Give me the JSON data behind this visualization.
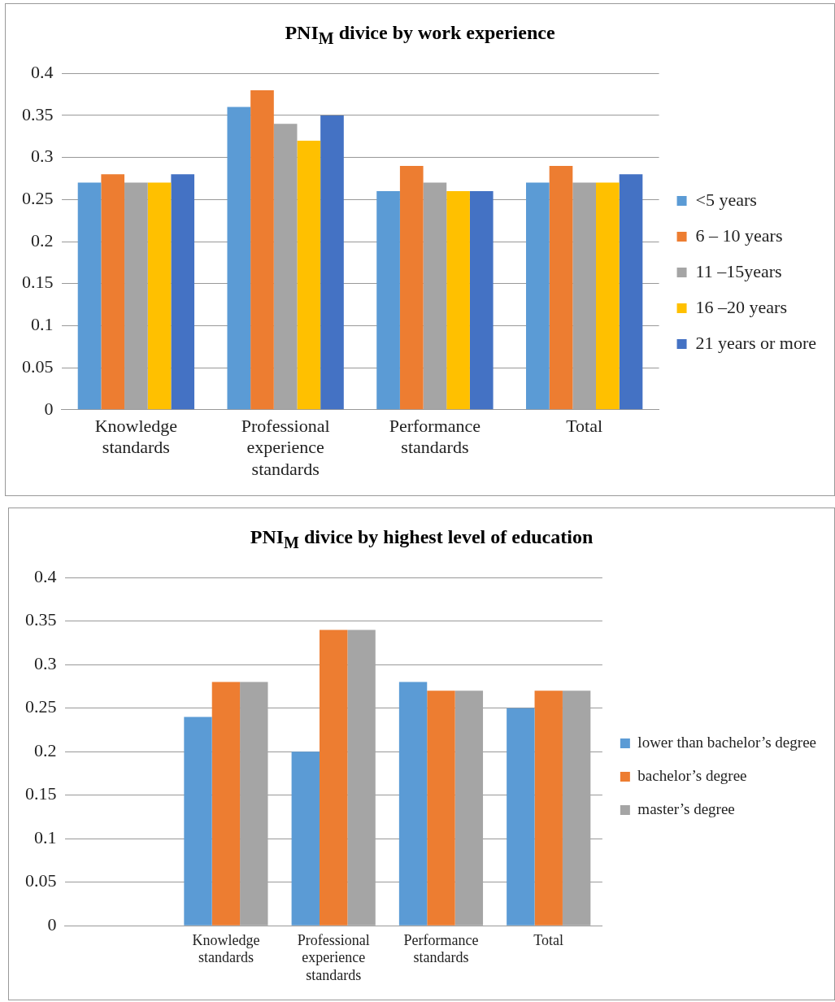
{
  "chart_data": [
    {
      "type": "bar",
      "title": "PNI$_{M}$ divice by work experience",
      "categories": [
        "Knowledge standards",
        "Professional experience standards",
        "Performance standards",
        "Total"
      ],
      "series": [
        {
          "name": "<5 years",
          "color": "#5b9bd5",
          "values": [
            0.27,
            0.36,
            0.26,
            0.27
          ]
        },
        {
          "name": "6 – 10 years",
          "color": "#ed7d31",
          "values": [
            0.28,
            0.38,
            0.29,
            0.29
          ]
        },
        {
          "name": "11 –15years",
          "color": "#a5a5a5",
          "values": [
            0.27,
            0.34,
            0.27,
            0.27
          ]
        },
        {
          "name": "16 –20 years",
          "color": "#ffc000",
          "values": [
            0.27,
            0.32,
            0.26,
            0.27
          ]
        },
        {
          "name": "21 years or more",
          "color": "#4472c4",
          "values": [
            0.28,
            0.35,
            0.26,
            0.28
          ]
        }
      ],
      "ylim": [
        0,
        0.4
      ],
      "yticks": [
        0,
        0.05,
        0.1,
        0.15,
        0.2,
        0.25,
        0.3,
        0.35,
        0.4
      ],
      "grid": "y",
      "legend": "right"
    },
    {
      "type": "bar",
      "title": "PNI$_{M}$ divice by highest level of education",
      "categories": [
        null,
        "Knowledge standards",
        "Professional experience standards",
        "Performance standards",
        "Total"
      ],
      "series": [
        {
          "name": "lower than bachelor’s degree",
          "color": "#5b9bd5",
          "values": [
            null,
            0.24,
            0.2,
            0.28,
            0.25
          ]
        },
        {
          "name": "bachelor’s degree",
          "color": "#ed7d31",
          "values": [
            null,
            0.28,
            0.34,
            0.27,
            0.27
          ]
        },
        {
          "name": "master’s degree",
          "color": "#a5a5a5",
          "values": [
            null,
            0.28,
            0.34,
            0.27,
            0.27
          ]
        }
      ],
      "ylim": [
        0,
        0.4
      ],
      "yticks": [
        0,
        0.05,
        0.1,
        0.15,
        0.2,
        0.25,
        0.3,
        0.35,
        0.4
      ],
      "grid": "y",
      "legend": "right"
    }
  ]
}
